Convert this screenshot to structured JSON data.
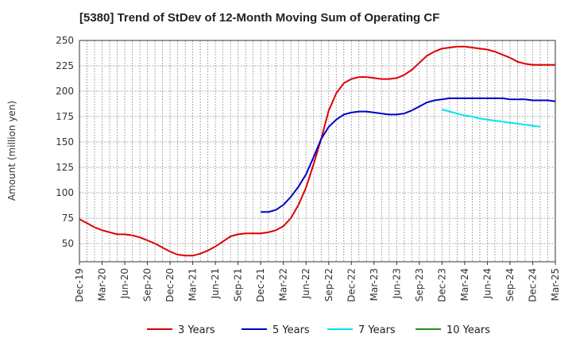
{
  "chart_data": {
    "type": "line",
    "title": "[5380]  Trend of StDev of 12-Month Moving Sum of Operating CF",
    "ylabel": "Amount (million yen)",
    "xlabel": "",
    "ylim": [
      32,
      250
    ],
    "yticks": [
      50,
      75,
      100,
      125,
      150,
      175,
      200,
      225,
      250
    ],
    "grid": true,
    "legend_position": "bottom",
    "x_tick_labels": [
      "Dec-19",
      "Mar-20",
      "Jun-20",
      "Sep-20",
      "Dec-20",
      "Mar-21",
      "Jun-21",
      "Sep-21",
      "Dec-21",
      "Mar-22",
      "Jun-22",
      "Sep-22",
      "Dec-22",
      "Mar-23",
      "Jun-23",
      "Sep-23",
      "Dec-23",
      "Mar-24",
      "Jun-24",
      "Sep-24",
      "Dec-24",
      "Mar-25"
    ],
    "series": [
      {
        "name": "3 Years",
        "color": "#dd0000",
        "start_month_index": 0,
        "values": [
          74,
          70,
          66,
          63,
          61,
          59,
          59,
          58,
          56,
          53,
          50,
          46,
          42,
          39,
          38,
          38,
          40,
          43,
          47,
          52,
          57,
          59,
          60,
          60,
          60,
          61,
          63,
          67,
          75,
          88,
          105,
          128,
          153,
          181,
          198,
          208,
          212,
          214,
          214,
          213,
          212,
          212,
          213,
          216,
          221,
          228,
          235,
          239,
          242,
          243,
          244,
          244,
          243,
          242,
          241,
          239,
          236,
          233,
          229,
          227,
          226,
          226,
          226,
          226
        ]
      },
      {
        "name": "5 Years",
        "color": "#0000cc",
        "start_month_index": 24,
        "values": [
          81,
          81,
          83,
          88,
          96,
          106,
          118,
          135,
          153,
          165,
          172,
          177,
          179,
          180,
          180,
          179,
          178,
          177,
          177,
          178,
          181,
          185,
          189,
          191,
          192,
          193,
          193,
          193,
          193,
          193,
          193,
          193,
          193,
          192,
          192,
          192,
          191,
          191,
          191,
          190
        ]
      },
      {
        "name": "7 Years",
        "color": "#00e5ee",
        "start_month_index": 48,
        "values": [
          182,
          180,
          178,
          176,
          175,
          173,
          172,
          171,
          170,
          169,
          168,
          167,
          166,
          165
        ]
      },
      {
        "name": "10 Years",
        "color": "#228b22",
        "start_month_index": 0,
        "values": []
      }
    ]
  }
}
